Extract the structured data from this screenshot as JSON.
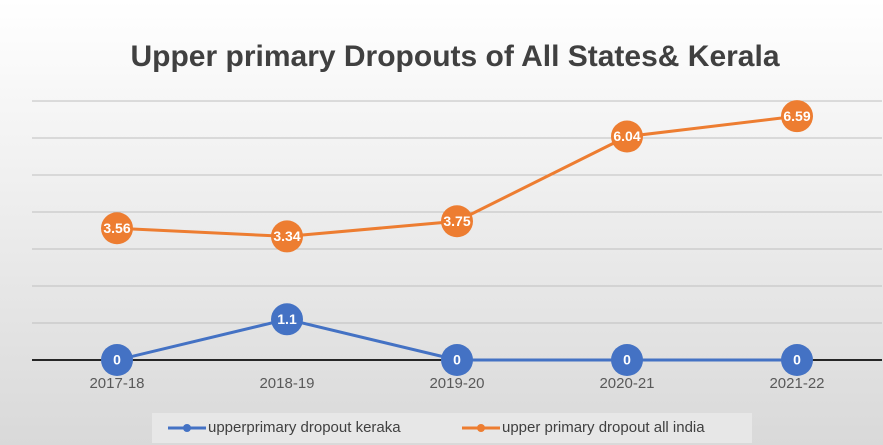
{
  "chart_data": {
    "type": "line",
    "title": "Upper primary Dropouts of All States& Kerala",
    "categories": [
      "2017-18",
      "2018-19",
      "2019-20",
      "2020-21",
      "2021-22"
    ],
    "series": [
      {
        "name": "upperprimary dropout keraka",
        "color": "#4472c4",
        "values": [
          0,
          1.1,
          0,
          0,
          0
        ]
      },
      {
        "name": "upper primary dropout all india",
        "color": "#ed7d31",
        "values": [
          3.56,
          3.34,
          3.75,
          6.04,
          6.59
        ]
      }
    ],
    "ylim": [
      0,
      7
    ],
    "yticks": [
      0,
      1,
      2,
      3,
      4,
      5,
      6,
      7
    ],
    "grid": true
  }
}
